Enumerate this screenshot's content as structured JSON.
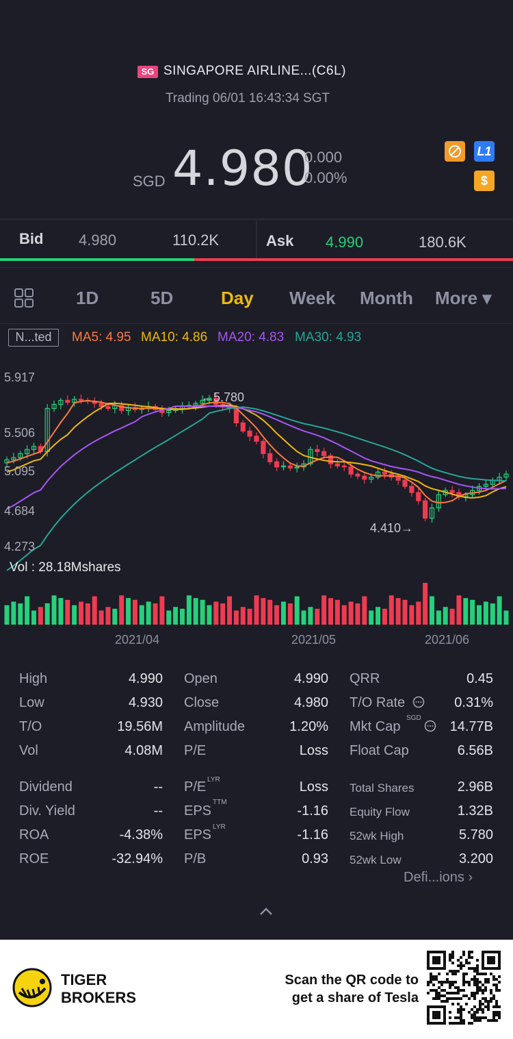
{
  "header": {
    "market_badge": "SG",
    "title": "SINGAPORE AIRLINE...(C6L)",
    "status": "Trading 06/01 16:43:34 SGT",
    "currency": "SGD",
    "price": "4.980",
    "change": "0.000",
    "change_pct": "0.00%",
    "icons": [
      "no-trade-icon",
      "level1-icon",
      "dollar-icon"
    ],
    "icon_l1": "L1",
    "icon_dollar": "$"
  },
  "quote": {
    "bid_label": "Bid",
    "bid_price": "4.980",
    "bid_size": "110.2K",
    "ask_label": "Ask",
    "ask_price": "4.990",
    "ask_size": "180.6K"
  },
  "tabs": {
    "items": [
      "1D",
      "5D",
      "Day",
      "Week",
      "Month",
      "More ▾"
    ],
    "active": "Day"
  },
  "indicators": {
    "adjust": "N...ted",
    "ma5": "MA5: 4.95",
    "ma10": "MA10: 4.86",
    "ma20": "MA20: 4.83",
    "ma30": "MA30: 4.93"
  },
  "chart": {
    "y_ticks": [
      "5.917",
      "5.506",
      "5.095",
      "4.684",
      "4.273"
    ],
    "high_mark": "5.780",
    "low_mark": "4.410",
    "vol_label": "Vol  : 28.18Mshares",
    "x_ticks": [
      "2021/04",
      "2021/05",
      "2021/06"
    ]
  },
  "chart_data": {
    "type": "candlestick",
    "ylim": [
      4.273,
      5.917
    ],
    "y_ticks": [
      5.917,
      5.506,
      5.095,
      4.684,
      4.273
    ],
    "x_ticks": [
      "2021/04",
      "2021/05",
      "2021/06"
    ],
    "annotations": [
      {
        "label": "5.780",
        "kind": "high"
      },
      {
        "label": "4.410",
        "kind": "low"
      }
    ],
    "moving_averages": [
      {
        "name": "MA5",
        "last": 4.95,
        "color": "#ff7a3c"
      },
      {
        "name": "MA10",
        "last": 4.86,
        "color": "#f0b90b"
      },
      {
        "name": "MA20",
        "last": 4.83,
        "color": "#a855f7"
      },
      {
        "name": "MA30",
        "last": 4.93,
        "color": "#26a69a"
      }
    ],
    "volume_total": "28.18Mshares"
  },
  "stats": {
    "rows": [
      [
        "High",
        "4.990",
        "Open",
        "4.990",
        "QRR",
        "0.45"
      ],
      [
        "Low",
        "4.930",
        "Close",
        "4.980",
        "T/O Rate",
        "0.31%"
      ],
      [
        "T/O",
        "19.56M",
        "Amplitude",
        "1.20%",
        "Mkt Cap",
        "14.77B"
      ],
      [
        "Vol",
        "4.08M",
        "P/E",
        "Loss",
        "Float Cap",
        "6.56B"
      ],
      [
        "Dividend",
        "--",
        "P/E",
        "Loss",
        "Total Shares",
        "2.96B"
      ],
      [
        "Div. Yield",
        "--",
        "EPS",
        "-1.16",
        "Equity Flow",
        "1.32B"
      ],
      [
        "ROA",
        "-4.38%",
        "EPS",
        "-1.16",
        "52wk High",
        "5.780"
      ],
      [
        "ROE",
        "-32.94%",
        "P/B",
        "0.93",
        "52wk Low",
        "3.200"
      ]
    ],
    "sup_sgd": "SGD",
    "sup_lyr": "LYR",
    "sup_ttm": "TTM",
    "definitions": "Defi...ions ›"
  },
  "footer": {
    "brand_line1": "TIGER",
    "brand_line2": "BROKERS",
    "promo_line1": "Scan the QR code to",
    "promo_line2": "get a share of Tesla"
  },
  "colors": {
    "up": "#26d07c",
    "down": "#ef3b52",
    "active_tab": "#f0b90b",
    "background": "#1c1d26"
  }
}
